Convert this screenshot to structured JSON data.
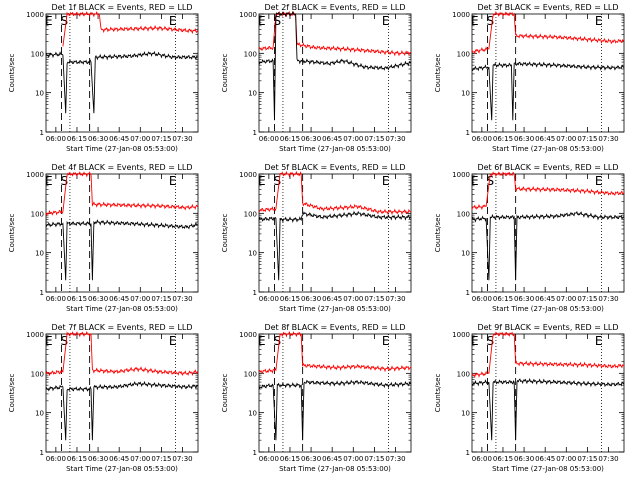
{
  "chart_data": [
    {
      "type": "line",
      "title": "Det 1f BLACK = Events, RED = LLD",
      "xlabel": "Start Time (27-Jan-08 05:53:00)",
      "ylabel": "Counts/sec",
      "xticks": [
        "06:00",
        "06:15",
        "06:30",
        "06:45",
        "07:00",
        "07:15",
        "07:30"
      ],
      "yticks": [
        "1",
        "10",
        "100",
        "1000"
      ],
      "yscale": "log",
      "ylim": [
        1,
        1000
      ],
      "markers": [
        "E",
        "S",
        "E"
      ],
      "series": [
        {
          "color": "#ff0000",
          "values": [
            [
              12,
              150
            ],
            [
              15,
              1000
            ],
            [
              38,
              1000
            ],
            [
              39,
              400
            ],
            [
              60,
              420
            ],
            [
              80,
              440
            ],
            [
              100,
              380
            ],
            [
              108,
              370
            ]
          ]
        },
        {
          "color": "#000000",
          "values": [
            [
              0,
              90
            ],
            [
              10,
              95
            ],
            [
              12,
              90
            ],
            [
              14,
              3
            ],
            [
              15,
              60
            ],
            [
              32,
              60
            ],
            [
              34,
              3
            ],
            [
              35,
              80
            ],
            [
              60,
              85
            ],
            [
              75,
              100
            ],
            [
              90,
              80
            ],
            [
              108,
              80
            ]
          ]
        }
      ]
    },
    {
      "type": "line",
      "title": "Det 2f BLACK = Events, RED = LLD",
      "xlabel": "Start Time (27-Jan-08 05:53:00)",
      "ylabel": "Counts/sec",
      "xticks": [
        "06:00",
        "06:15",
        "06:30",
        "06:45",
        "07:00",
        "07:15",
        "07:30"
      ],
      "yticks": [
        "1",
        "10",
        "100",
        "1000"
      ],
      "yscale": "log",
      "ylim": [
        1,
        1000
      ],
      "markers": [
        "E",
        "S",
        "E"
      ],
      "series": [
        {
          "color": "#ff0000",
          "values": [
            [
              0,
              130
            ],
            [
              10,
              140
            ],
            [
              12,
              1000
            ],
            [
              26,
              1000
            ],
            [
              27,
              170
            ],
            [
              40,
              140
            ],
            [
              60,
              130
            ],
            [
              80,
              115
            ],
            [
              100,
              100
            ],
            [
              108,
              105
            ]
          ]
        },
        {
          "color": "#000000",
          "values": [
            [
              0,
              60
            ],
            [
              10,
              65
            ],
            [
              11,
              2
            ],
            [
              12,
              1000
            ],
            [
              26,
              1000
            ],
            [
              27,
              65
            ],
            [
              40,
              60
            ],
            [
              50,
              55
            ],
            [
              60,
              65
            ],
            [
              75,
              45
            ],
            [
              90,
              42
            ],
            [
              108,
              58
            ]
          ]
        }
      ]
    },
    {
      "type": "line",
      "title": "Det 3f BLACK = Events, RED = LLD",
      "xlabel": "Start Time (27-Jan-08 05:53:00)",
      "ylabel": "Counts/sec",
      "xticks": [
        "06:00",
        "06:15",
        "06:30",
        "06:45",
        "07:00",
        "07:15",
        "07:30"
      ],
      "yticks": [
        "1",
        "10",
        "100",
        "1000"
      ],
      "yscale": "log",
      "ylim": [
        1,
        1000
      ],
      "markers": [
        "E",
        "S",
        "E"
      ],
      "series": [
        {
          "color": "#ff0000",
          "values": [
            [
              0,
              110
            ],
            [
              12,
              130
            ],
            [
              15,
              1000
            ],
            [
              30,
              1000
            ],
            [
              31,
              280
            ],
            [
              60,
              260
            ],
            [
              80,
              230
            ],
            [
              100,
              200
            ],
            [
              108,
              210
            ]
          ]
        },
        {
          "color": "#000000",
          "values": [
            [
              0,
              40
            ],
            [
              12,
              45
            ],
            [
              14,
              2
            ],
            [
              15,
              50
            ],
            [
              28,
              50
            ],
            [
              29,
              2
            ],
            [
              30,
              55
            ],
            [
              60,
              50
            ],
            [
              80,
              45
            ],
            [
              100,
              43
            ],
            [
              108,
              45
            ]
          ]
        }
      ]
    },
    {
      "type": "line",
      "title": "Det 4f BLACK = Events, RED = LLD",
      "xlabel": "Start Time (27-Jan-08 05:53:00)",
      "ylabel": "Counts/sec",
      "xticks": [
        "06:00",
        "06:15",
        "06:30",
        "06:45",
        "07:00",
        "07:15",
        "07:30"
      ],
      "yticks": [
        "1",
        "10",
        "100",
        "1000"
      ],
      "yscale": "log",
      "ylim": [
        1,
        1000
      ],
      "markers": [
        "E",
        "S",
        "E"
      ],
      "series": [
        {
          "color": "#ff0000",
          "values": [
            [
              0,
              100
            ],
            [
              12,
              110
            ],
            [
              15,
              1000
            ],
            [
              32,
              1000
            ],
            [
              33,
              170
            ],
            [
              60,
              160
            ],
            [
              80,
              155
            ],
            [
              100,
              140
            ],
            [
              108,
              150
            ]
          ]
        },
        {
          "color": "#000000",
          "values": [
            [
              0,
              50
            ],
            [
              12,
              55
            ],
            [
              14,
              2
            ],
            [
              15,
              55
            ],
            [
              32,
              55
            ],
            [
              33,
              2
            ],
            [
              34,
              60
            ],
            [
              60,
              55
            ],
            [
              80,
              50
            ],
            [
              100,
              45
            ],
            [
              108,
              52
            ]
          ]
        }
      ]
    },
    {
      "type": "line",
      "title": "Det 5f BLACK = Events, RED = LLD",
      "xlabel": "Start Time (27-Jan-08 05:53:00)",
      "ylabel": "Counts/sec",
      "xticks": [
        "06:00",
        "06:15",
        "06:30",
        "06:45",
        "07:00",
        "07:15",
        "07:30"
      ],
      "yticks": [
        "1",
        "10",
        "100",
        "1000"
      ],
      "yscale": "log",
      "ylim": [
        1,
        1000
      ],
      "markers": [
        "E",
        "S",
        "E"
      ],
      "series": [
        {
          "color": "#ff0000",
          "values": [
            [
              0,
              120
            ],
            [
              12,
              130
            ],
            [
              15,
              1000
            ],
            [
              30,
              1000
            ],
            [
              31,
              180
            ],
            [
              45,
              130
            ],
            [
              60,
              140
            ],
            [
              70,
              150
            ],
            [
              85,
              110
            ],
            [
              108,
              110
            ]
          ]
        },
        {
          "color": "#000000",
          "values": [
            [
              0,
              70
            ],
            [
              12,
              75
            ],
            [
              14,
              2
            ],
            [
              15,
              70
            ],
            [
              30,
              70
            ],
            [
              31,
              100
            ],
            [
              45,
              80
            ],
            [
              60,
              90
            ],
            [
              70,
              100
            ],
            [
              85,
              80
            ],
            [
              108,
              80
            ]
          ]
        }
      ]
    },
    {
      "type": "line",
      "title": "Det 6f BLACK = Events, RED = LLD",
      "xlabel": "Start Time (27-Jan-08 05:53:00)",
      "ylabel": "Counts/sec",
      "xticks": [
        "06:00",
        "06:15",
        "06:30",
        "06:45",
        "07:00",
        "07:15",
        "07:30"
      ],
      "yticks": [
        "1",
        "10",
        "100",
        "1000"
      ],
      "yscale": "log",
      "ylim": [
        1,
        1000
      ],
      "markers": [
        "E",
        "S",
        "E"
      ],
      "series": [
        {
          "color": "#ff0000",
          "values": [
            [
              0,
              140
            ],
            [
              10,
              150
            ],
            [
              13,
              1000
            ],
            [
              30,
              1000
            ],
            [
              31,
              420
            ],
            [
              60,
              400
            ],
            [
              80,
              370
            ],
            [
              100,
              320
            ],
            [
              108,
              330
            ]
          ]
        },
        {
          "color": "#000000",
          "values": [
            [
              0,
              70
            ],
            [
              10,
              75
            ],
            [
              12,
              2
            ],
            [
              13,
              80
            ],
            [
              30,
              80
            ],
            [
              31,
              2
            ],
            [
              32,
              80
            ],
            [
              60,
              85
            ],
            [
              75,
              100
            ],
            [
              90,
              80
            ],
            [
              108,
              80
            ]
          ]
        }
      ]
    },
    {
      "type": "line",
      "title": "Det 7f BLACK = Events, RED = LLD",
      "xlabel": "Start Time (27-Jan-08 05:53:00)",
      "ylabel": "Counts/sec",
      "xticks": [
        "06:00",
        "06:15",
        "06:30",
        "06:45",
        "07:00",
        "07:15",
        "07:30"
      ],
      "yticks": [
        "1",
        "10",
        "100",
        "1000"
      ],
      "yscale": "log",
      "ylim": [
        1,
        1000
      ],
      "markers": [
        "E",
        "S",
        "E"
      ],
      "series": [
        {
          "color": "#ff0000",
          "values": [
            [
              0,
              100
            ],
            [
              12,
              110
            ],
            [
              15,
              1000
            ],
            [
              32,
              1000
            ],
            [
              33,
              120
            ],
            [
              50,
              110
            ],
            [
              65,
              130
            ],
            [
              80,
              110
            ],
            [
              100,
              100
            ],
            [
              108,
              110
            ]
          ]
        },
        {
          "color": "#000000",
          "values": [
            [
              0,
              40
            ],
            [
              12,
              45
            ],
            [
              14,
              2
            ],
            [
              15,
              40
            ],
            [
              32,
              40
            ],
            [
              33,
              2
            ],
            [
              34,
              45
            ],
            [
              50,
              45
            ],
            [
              65,
              55
            ],
            [
              80,
              50
            ],
            [
              100,
              45
            ],
            [
              108,
              48
            ]
          ]
        }
      ]
    },
    {
      "type": "line",
      "title": "Det 8f BLACK = Events, RED = LLD",
      "xlabel": "Start Time (27-Jan-08 05:53:00)",
      "ylabel": "Counts/sec",
      "xticks": [
        "06:00",
        "06:15",
        "06:30",
        "06:45",
        "07:00",
        "07:15",
        "07:30"
      ],
      "yticks": [
        "1",
        "10",
        "100",
        "1000"
      ],
      "yscale": "log",
      "ylim": [
        1,
        1000
      ],
      "markers": [
        "E",
        "S",
        "E"
      ],
      "series": [
        {
          "color": "#ff0000",
          "values": [
            [
              0,
              110
            ],
            [
              12,
              120
            ],
            [
              15,
              1000
            ],
            [
              30,
              1000
            ],
            [
              31,
              160
            ],
            [
              55,
              140
            ],
            [
              70,
              150
            ],
            [
              90,
              130
            ],
            [
              108,
              140
            ]
          ]
        },
        {
          "color": "#000000",
          "values": [
            [
              0,
              45
            ],
            [
              10,
              50
            ],
            [
              12,
              2
            ],
            [
              13,
              50
            ],
            [
              30,
              50
            ],
            [
              31,
              2
            ],
            [
              32,
              60
            ],
            [
              55,
              55
            ],
            [
              70,
              60
            ],
            [
              90,
              50
            ],
            [
              108,
              55
            ]
          ]
        }
      ]
    },
    {
      "type": "line",
      "title": "Det 9f BLACK = Events, RED = LLD",
      "xlabel": "Start Time (27-Jan-08 05:53:00)",
      "ylabel": "Counts/sec",
      "xticks": [
        "06:00",
        "06:15",
        "06:30",
        "06:45",
        "07:00",
        "07:15",
        "07:30"
      ],
      "yticks": [
        "1",
        "10",
        "100",
        "1000"
      ],
      "yscale": "log",
      "ylim": [
        1,
        1000
      ],
      "markers": [
        "E",
        "S",
        "E"
      ],
      "series": [
        {
          "color": "#ff0000",
          "values": [
            [
              0,
              90
            ],
            [
              12,
              100
            ],
            [
              15,
              1000
            ],
            [
              30,
              1000
            ],
            [
              31,
              180
            ],
            [
              60,
              170
            ],
            [
              80,
              165
            ],
            [
              100,
              150
            ],
            [
              108,
              160
            ]
          ]
        },
        {
          "color": "#000000",
          "values": [
            [
              0,
              55
            ],
            [
              12,
              60
            ],
            [
              14,
              2
            ],
            [
              15,
              60
            ],
            [
              30,
              60
            ],
            [
              31,
              2
            ],
            [
              32,
              65
            ],
            [
              60,
              60
            ],
            [
              80,
              55
            ],
            [
              100,
              52
            ],
            [
              108,
              55
            ]
          ]
        }
      ]
    }
  ]
}
